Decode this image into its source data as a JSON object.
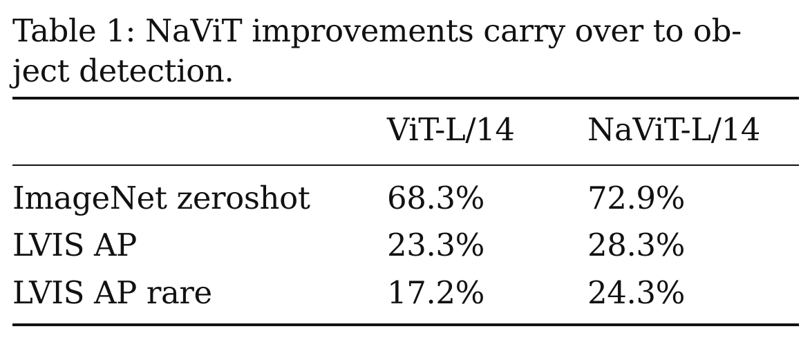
{
  "caption": {
    "line1": "Table 1: NaViT improvements carry over to ob-",
    "line2": "ject detection."
  },
  "table": {
    "headers": [
      "",
      "ViT-L/14",
      "NaViT-L/14"
    ],
    "rows": [
      {
        "label": "ImageNet zeroshot",
        "values": [
          "68.3%",
          "72.9%"
        ]
      },
      {
        "label": "LVIS AP",
        "values": [
          "23.3%",
          "28.3%"
        ]
      },
      {
        "label": "LVIS AP rare",
        "values": [
          "17.2%",
          "24.3%"
        ]
      }
    ]
  }
}
